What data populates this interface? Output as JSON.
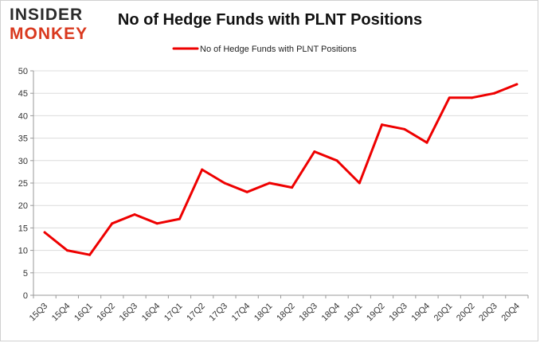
{
  "logo": {
    "line1": "INSIDER",
    "line2": "MONKEY"
  },
  "chart_data": {
    "type": "line",
    "title": "No of Hedge Funds with PLNT Positions",
    "xlabel": "",
    "ylabel": "",
    "categories": [
      "15Q3",
      "15Q4",
      "16Q1",
      "16Q2",
      "16Q3",
      "16Q4",
      "17Q1",
      "17Q2",
      "17Q3",
      "17Q4",
      "18Q1",
      "18Q2",
      "18Q3",
      "18Q4",
      "19Q1",
      "19Q2",
      "19Q3",
      "19Q4",
      "20Q1",
      "20Q2",
      "20Q3",
      "20Q4"
    ],
    "series": [
      {
        "name": "No of Hedge Funds with PLNT Positions",
        "color": "#ee0000",
        "values": [
          14,
          10,
          9,
          16,
          18,
          16,
          17,
          28,
          25,
          23,
          25,
          24,
          32,
          30,
          25,
          38,
          37,
          34,
          44,
          44,
          45,
          47
        ]
      }
    ],
    "yticks": [
      0,
      5,
      10,
      15,
      20,
      25,
      30,
      35,
      40,
      45,
      50
    ],
    "ylim": [
      0,
      50
    ],
    "grid": true,
    "legend_position": "top-center"
  }
}
